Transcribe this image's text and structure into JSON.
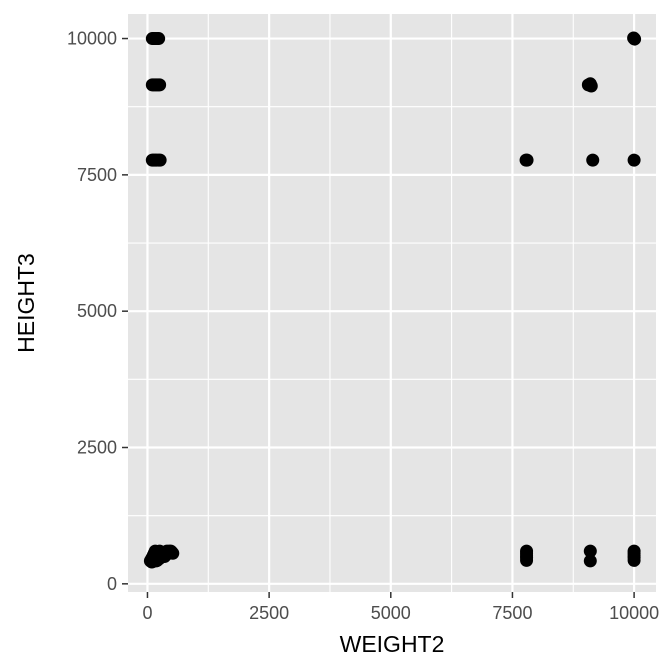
{
  "chart_data": {
    "type": "scatter",
    "title": "",
    "xlabel": "WEIGHT2",
    "ylabel": "HEIGHT3",
    "xlim": [
      -400,
      10450
    ],
    "ylim": [
      -150,
      10450
    ],
    "x_ticks": [
      0,
      2500,
      5000,
      7500,
      10000
    ],
    "y_ticks": [
      0,
      2500,
      5000,
      7500,
      10000
    ],
    "x_tick_labels": [
      "0",
      "2500",
      "5000",
      "7500",
      "10000"
    ],
    "y_tick_labels": [
      "0",
      "2500",
      "5000",
      "7500",
      "10000"
    ],
    "grid": true,
    "colors": {
      "panel": "#e5e5e5",
      "grid": "#ffffff",
      "points": "#000000",
      "tick_text": "#4d4d4d"
    },
    "series": [
      {
        "points": [
          [
            100,
            10000
          ],
          [
            130,
            10000
          ],
          [
            160,
            10000
          ],
          [
            200,
            10000
          ],
          [
            230,
            10000
          ],
          [
            100,
            9150
          ],
          [
            130,
            9150
          ],
          [
            160,
            9150
          ],
          [
            190,
            9150
          ],
          [
            220,
            9150
          ],
          [
            250,
            9150
          ],
          [
            100,
            7770
          ],
          [
            130,
            7770
          ],
          [
            160,
            7770
          ],
          [
            190,
            7770
          ],
          [
            230,
            7770
          ],
          [
            260,
            7770
          ],
          [
            60,
            420
          ],
          [
            80,
            450
          ],
          [
            100,
            480
          ],
          [
            120,
            520
          ],
          [
            140,
            560
          ],
          [
            160,
            600
          ],
          [
            90,
            400
          ],
          [
            110,
            410
          ],
          [
            130,
            440
          ],
          [
            150,
            470
          ],
          [
            170,
            500
          ],
          [
            190,
            530
          ],
          [
            210,
            560
          ],
          [
            230,
            590
          ],
          [
            250,
            600
          ],
          [
            270,
            580
          ],
          [
            290,
            560
          ],
          [
            310,
            540
          ],
          [
            330,
            520
          ],
          [
            350,
            500
          ],
          [
            370,
            520
          ],
          [
            390,
            540
          ],
          [
            410,
            560
          ],
          [
            430,
            580
          ],
          [
            450,
            600
          ],
          [
            480,
            600
          ],
          [
            500,
            580
          ],
          [
            520,
            560
          ],
          [
            200,
            430
          ],
          [
            240,
            460
          ],
          [
            280,
            490
          ],
          [
            320,
            510
          ],
          [
            360,
            560
          ],
          [
            400,
            600
          ],
          [
            180,
            420
          ],
          [
            7780,
            7770
          ],
          [
            7800,
            7770
          ],
          [
            9060,
            9150
          ],
          [
            9100,
            9170
          ],
          [
            9120,
            9130
          ],
          [
            9150,
            7770
          ],
          [
            10000,
            10000
          ],
          [
            10010,
            9990
          ],
          [
            9990,
            10010
          ],
          [
            10000,
            7770
          ],
          [
            7790,
            600
          ],
          [
            7790,
            560
          ],
          [
            7790,
            520
          ],
          [
            7790,
            480
          ],
          [
            7790,
            430
          ],
          [
            9100,
            600
          ],
          [
            9100,
            420
          ],
          [
            10000,
            600
          ],
          [
            10000,
            560
          ],
          [
            10000,
            520
          ],
          [
            10000,
            480
          ],
          [
            10000,
            430
          ]
        ]
      }
    ]
  }
}
